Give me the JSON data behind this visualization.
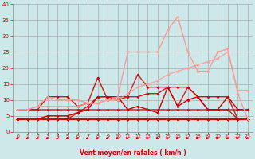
{
  "background_color": "#cce8e8",
  "grid_color": "#aaaaaa",
  "xlabel": "Vent moyen/en rafales ( km/h )",
  "xlabel_color": "#cc0000",
  "tick_label_color": "#cc0000",
  "xlim": [
    -0.5,
    23.5
  ],
  "ylim": [
    0,
    40
  ],
  "xticks": [
    0,
    1,
    2,
    3,
    4,
    5,
    6,
    7,
    8,
    9,
    10,
    11,
    12,
    13,
    14,
    15,
    16,
    17,
    18,
    19,
    20,
    21,
    22,
    23
  ],
  "yticks": [
    0,
    5,
    10,
    15,
    20,
    25,
    30,
    35,
    40
  ],
  "lines": [
    {
      "x": [
        0,
        1,
        2,
        3,
        4,
        5,
        6,
        7,
        8,
        9,
        10,
        11,
        12,
        13,
        14,
        15,
        16,
        17,
        18,
        19,
        20,
        21,
        22,
        23
      ],
      "y": [
        4,
        4,
        4,
        4,
        4,
        4,
        4,
        4,
        4,
        4,
        4,
        4,
        4,
        4,
        4,
        4,
        4,
        4,
        4,
        4,
        4,
        4,
        4,
        4
      ],
      "color": "#cc0000",
      "lw": 1.5,
      "marker": "D",
      "ms": 2.5,
      "alpha": 1.0
    },
    {
      "x": [
        0,
        1,
        2,
        3,
        4,
        5,
        6,
        7,
        8,
        9,
        10,
        11,
        12,
        13,
        14,
        15,
        16,
        17,
        18,
        19,
        20,
        21,
        22,
        23
      ],
      "y": [
        7,
        7,
        7,
        7,
        7,
        7,
        7,
        7,
        7,
        7,
        7,
        7,
        7,
        7,
        7,
        7,
        7,
        7,
        7,
        7,
        7,
        7,
        7,
        7
      ],
      "color": "#cc0000",
      "lw": 1.2,
      "marker": "D",
      "ms": 2.0,
      "alpha": 0.75
    },
    {
      "x": [
        0,
        1,
        2,
        3,
        4,
        5,
        6,
        7,
        8,
        9,
        10,
        11,
        12,
        13,
        14,
        15,
        16,
        17,
        18,
        19,
        20,
        21,
        22,
        23
      ],
      "y": [
        4,
        4,
        4,
        5,
        5,
        5,
        6,
        7,
        11,
        11,
        11,
        7,
        8,
        7,
        6,
        14,
        8,
        10,
        11,
        7,
        7,
        11,
        7,
        7
      ],
      "color": "#cc0000",
      "lw": 1.0,
      "marker": "D",
      "ms": 2.0,
      "alpha": 1.0
    },
    {
      "x": [
        0,
        1,
        2,
        3,
        4,
        5,
        6,
        7,
        8,
        9,
        10,
        11,
        12,
        13,
        14,
        15,
        16,
        17,
        18,
        19,
        20,
        21,
        22,
        23
      ],
      "y": [
        4,
        4,
        4,
        4,
        4,
        4,
        6,
        8,
        11,
        11,
        10,
        11,
        18,
        14,
        14,
        14,
        8,
        14,
        11,
        7,
        7,
        7,
        4,
        4
      ],
      "color": "#cc0000",
      "lw": 1.0,
      "marker": "D",
      "ms": 2.0,
      "alpha": 0.85
    },
    {
      "x": [
        0,
        1,
        2,
        3,
        4,
        5,
        6,
        7,
        8,
        9,
        10,
        11,
        12,
        13,
        14,
        15,
        16,
        17,
        18,
        19,
        20,
        21,
        22,
        23
      ],
      "y": [
        7,
        7,
        7,
        11,
        11,
        11,
        8,
        9,
        17,
        10,
        11,
        11,
        11,
        12,
        12,
        14,
        14,
        14,
        11,
        11,
        11,
        11,
        4,
        4
      ],
      "color": "#cc0000",
      "lw": 1.0,
      "marker": "D",
      "ms": 2.0,
      "alpha": 0.9
    },
    {
      "x": [
        0,
        1,
        2,
        3,
        4,
        5,
        6,
        7,
        8,
        9,
        10,
        11,
        12,
        13,
        14,
        15,
        16,
        17,
        18,
        19,
        20,
        21,
        22,
        23
      ],
      "y": [
        7,
        7,
        8,
        11,
        10,
        10,
        10,
        9,
        9,
        10,
        11,
        25,
        25,
        25,
        25,
        32,
        36,
        25,
        19,
        19,
        25,
        26,
        12,
        4
      ],
      "color": "#ff9999",
      "lw": 1.0,
      "marker": "D",
      "ms": 2.0,
      "alpha": 1.0
    },
    {
      "x": [
        0,
        1,
        2,
        3,
        4,
        5,
        6,
        7,
        8,
        9,
        10,
        11,
        12,
        13,
        14,
        15,
        16,
        17,
        18,
        19,
        20,
        21,
        22,
        23
      ],
      "y": [
        7,
        7,
        8,
        8,
        8,
        8,
        8,
        9,
        9,
        10,
        10,
        12,
        14,
        15,
        16,
        18,
        19,
        20,
        21,
        22,
        23,
        25,
        13,
        13
      ],
      "color": "#ff9999",
      "lw": 1.0,
      "marker": "D",
      "ms": 2.0,
      "alpha": 0.85
    }
  ],
  "arrow_color": "#cc0000"
}
